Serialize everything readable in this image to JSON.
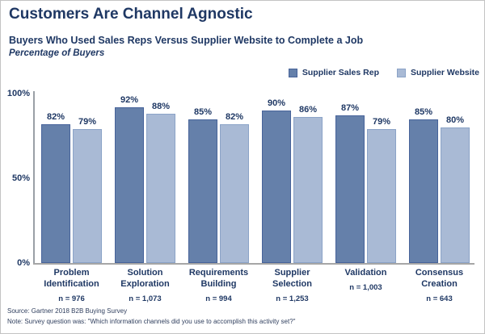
{
  "header": {
    "title": "Customers Are Channel Agnostic",
    "subtitle": "Buyers Who Used Sales Reps Versus Supplier Website to Complete a Job",
    "axis_note": "Percentage of Buyers"
  },
  "legend": {
    "position": "top-right",
    "items": [
      {
        "label": "Supplier Sales Rep",
        "color": "#6580aa"
      },
      {
        "label": "Supplier Website",
        "color": "#a9bad5"
      }
    ]
  },
  "chart_data": {
    "type": "bar",
    "title": "Customers Are Channel Agnostic",
    "subtitle": "Buyers Who Used Sales Reps Versus Supplier Website to Complete a Job",
    "ylabel": "Percentage of Buyers",
    "ylim": [
      0,
      100
    ],
    "yticks": [
      "0%",
      "50%",
      "100%"
    ],
    "grid": false,
    "legend_position": "top-right",
    "categories": [
      "Problem Identification",
      "Solution Exploration",
      "Requirements Building",
      "Supplier Selection",
      "Validation",
      "Consensus Creation"
    ],
    "n_labels": [
      "n = 976",
      "n = 1,073",
      "n = 994",
      "n = 1,253",
      "n = 1,003",
      "n = 643"
    ],
    "series": [
      {
        "name": "Supplier Sales Rep",
        "color": "#6580aa",
        "border": "#47639a",
        "values": [
          82,
          92,
          85,
          90,
          87,
          85
        ]
      },
      {
        "name": "Supplier Website",
        "color": "#a9bad5",
        "border": "#8ba3c7",
        "values": [
          79,
          88,
          82,
          86,
          79,
          80
        ]
      }
    ]
  },
  "footer": {
    "source": "Source: Gartner 2018 B2B Buying Survey",
    "note": "Note: Survey question was: \"Which information channels did you use to accomplish this activity set?\""
  }
}
